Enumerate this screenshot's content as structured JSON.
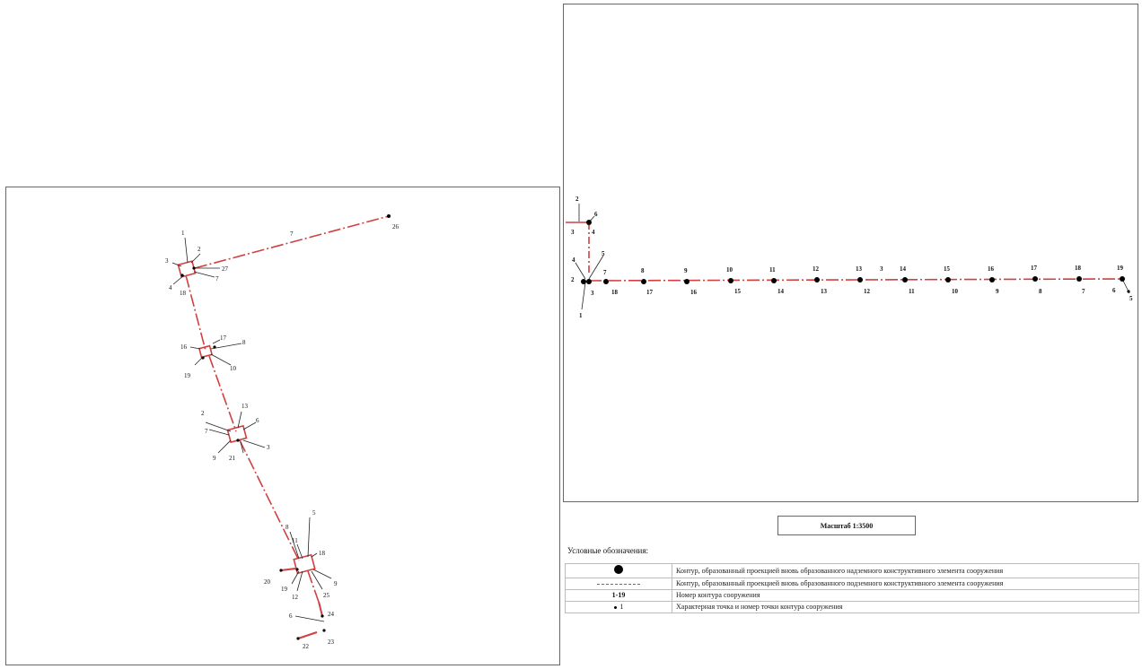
{
  "left_map": {
    "labels": [
      "1",
      "2",
      "3",
      "27",
      "7",
      "4",
      "18",
      "7",
      "26",
      "17",
      "8",
      "16",
      "19",
      "10",
      "13",
      "2",
      "6",
      "7",
      "3",
      "9",
      "21",
      "5",
      "8",
      "11",
      "18",
      "20",
      "19",
      "12",
      "25",
      "9",
      "6",
      "24",
      "22",
      "23"
    ]
  },
  "right_map": {
    "labels": [
      "2",
      "6",
      "3",
      "4",
      "5",
      "4",
      "2",
      "3",
      "1",
      "7",
      "18",
      "8",
      "17",
      "9",
      "16",
      "10",
      "15",
      "11",
      "14",
      "12",
      "13",
      "13",
      "12",
      "3",
      "14",
      "11",
      "15",
      "10",
      "16",
      "9",
      "17",
      "8",
      "18",
      "7",
      "19",
      "6",
      "5"
    ]
  },
  "scale": "Масштаб 1:3500",
  "legend": {
    "title": "Условные обозначения:",
    "rows": [
      {
        "symbol": "",
        "desc": "Контур, образованный проекцией вновь образованного надземного конструктивного элемента сооружения"
      },
      {
        "symbol": "",
        "desc": "Контур, образованный проекцией вновь образованного подземного конструктивного элемента сооружения"
      },
      {
        "symbol": "1-19",
        "desc": "Номер контура сооружения"
      },
      {
        "symbol": "1",
        "desc": "Характерная точка и номер точки контура сооружения"
      }
    ]
  },
  "colors": {
    "contour": "#d04040",
    "point": "#000000"
  }
}
